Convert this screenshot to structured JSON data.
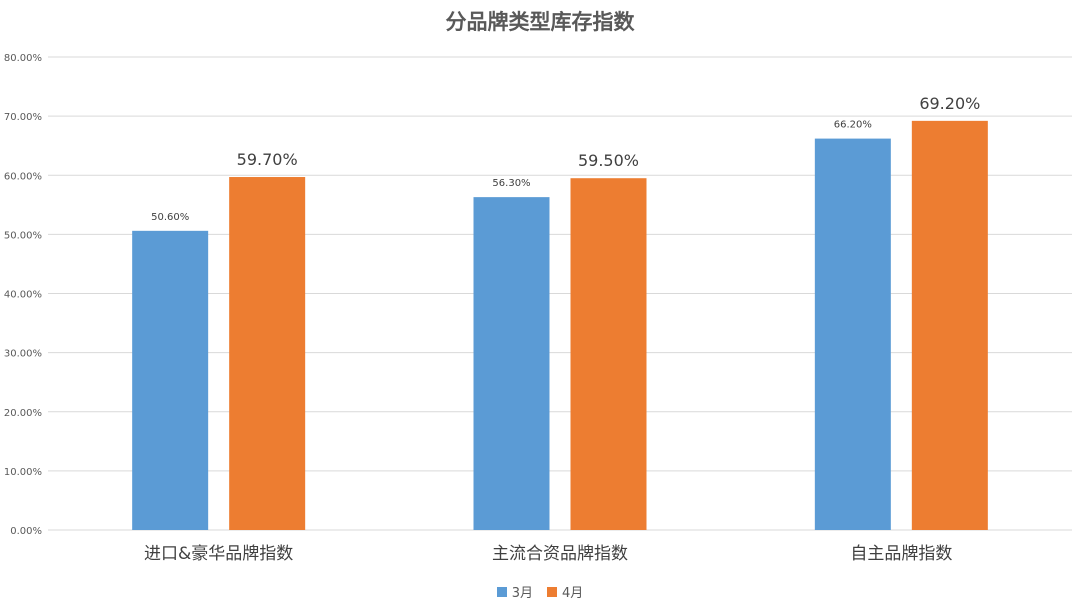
{
  "chart_data": {
    "type": "bar",
    "title": "分品牌类型库存指数",
    "xlabel": "",
    "ylabel": "",
    "ylim": [
      0,
      80
    ],
    "y_ticks": [
      0,
      10,
      20,
      30,
      40,
      50,
      60,
      70,
      80
    ],
    "y_tick_labels": [
      "0.00%",
      "10.00%",
      "20.00%",
      "30.00%",
      "40.00%",
      "50.00%",
      "60.00%",
      "70.00%",
      "80.00%"
    ],
    "categories": [
      "进口&豪华品牌指数",
      "主流合资品牌指数",
      "自主品牌指数"
    ],
    "series": [
      {
        "name": "3月",
        "color": "#5B9BD5",
        "values": [
          50.6,
          56.3,
          66.2
        ],
        "labels": [
          "50.60%",
          "56.30%",
          "66.20%"
        ]
      },
      {
        "name": "4月",
        "color": "#ED7D31",
        "values": [
          59.7,
          59.5,
          69.2
        ],
        "labels": [
          "59.70%",
          "59.50%",
          "69.20%"
        ]
      }
    ],
    "grid": true,
    "legend_position": "bottom"
  }
}
